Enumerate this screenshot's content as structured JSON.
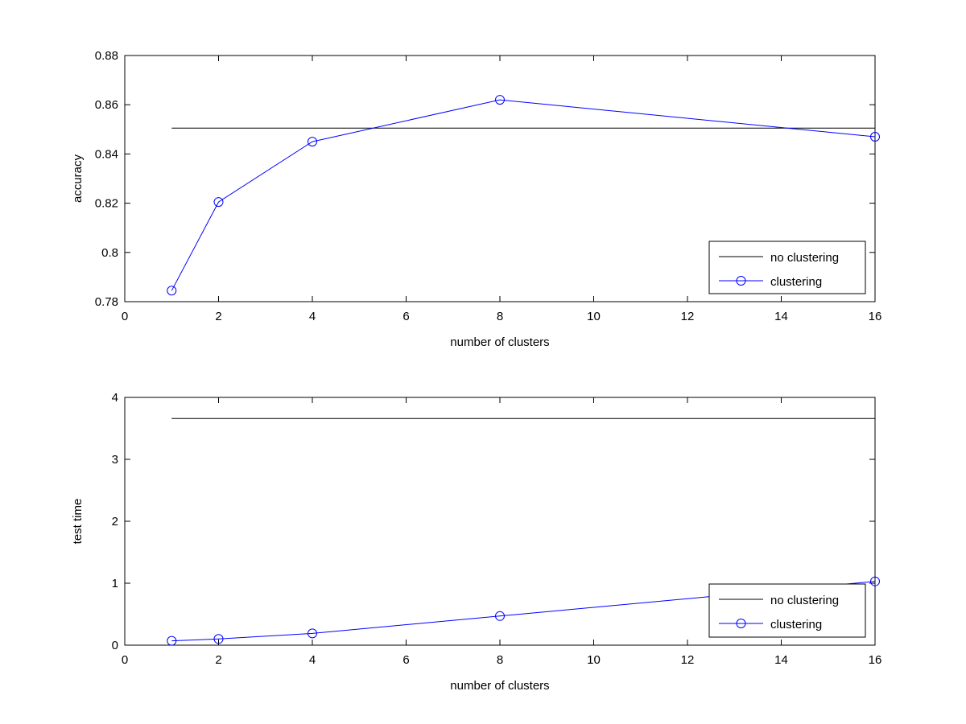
{
  "colors": {
    "background": "#ffffff",
    "axes": "#000000",
    "no_clustering_line": "#000000",
    "clustering_line": "#0000ff"
  },
  "chart_data": [
    {
      "type": "line",
      "title": "",
      "xlabel": "number of clusters",
      "ylabel": "accuracy",
      "xlim": [
        0,
        16
      ],
      "ylim": [
        0.78,
        0.88
      ],
      "xticks": [
        0,
        2,
        4,
        6,
        8,
        10,
        12,
        14,
        16
      ],
      "xtick_labels": [
        "0",
        "2",
        "4",
        "6",
        "8",
        "10",
        "12",
        "14",
        "16"
      ],
      "yticks": [
        0.78,
        0.8,
        0.82,
        0.84,
        0.86,
        0.88
      ],
      "ytick_labels": [
        "0.78",
        "0.8",
        "0.82",
        "0.84",
        "0.86",
        "0.88"
      ],
      "grid": false,
      "legend_position": "bottom-right",
      "series": [
        {
          "name": "no clustering",
          "color": "#000000",
          "marker": "none",
          "x": [
            1,
            16
          ],
          "y": [
            0.8505,
            0.8505
          ]
        },
        {
          "name": "clustering",
          "color": "#0000ff",
          "marker": "circle",
          "x": [
            1,
            2,
            4,
            8,
            16
          ],
          "y": [
            0.7845,
            0.8205,
            0.845,
            0.862,
            0.847
          ]
        }
      ]
    },
    {
      "type": "line",
      "title": "",
      "xlabel": "number of clusters",
      "ylabel": "test time",
      "xlim": [
        0,
        16
      ],
      "ylim": [
        0,
        4
      ],
      "xticks": [
        0,
        2,
        4,
        6,
        8,
        10,
        12,
        14,
        16
      ],
      "xtick_labels": [
        "0",
        "2",
        "4",
        "6",
        "8",
        "10",
        "12",
        "14",
        "16"
      ],
      "yticks": [
        0,
        1,
        2,
        3,
        4
      ],
      "ytick_labels": [
        "0",
        "1",
        "2",
        "3",
        "4"
      ],
      "grid": false,
      "legend_position": "bottom-right",
      "series": [
        {
          "name": "no clustering",
          "color": "#000000",
          "marker": "none",
          "x": [
            1,
            16
          ],
          "y": [
            3.66,
            3.66
          ]
        },
        {
          "name": "clustering",
          "color": "#0000ff",
          "marker": "circle",
          "x": [
            1,
            2,
            4,
            8,
            16
          ],
          "y": [
            0.07,
            0.1,
            0.19,
            0.47,
            1.03
          ]
        }
      ]
    }
  ]
}
